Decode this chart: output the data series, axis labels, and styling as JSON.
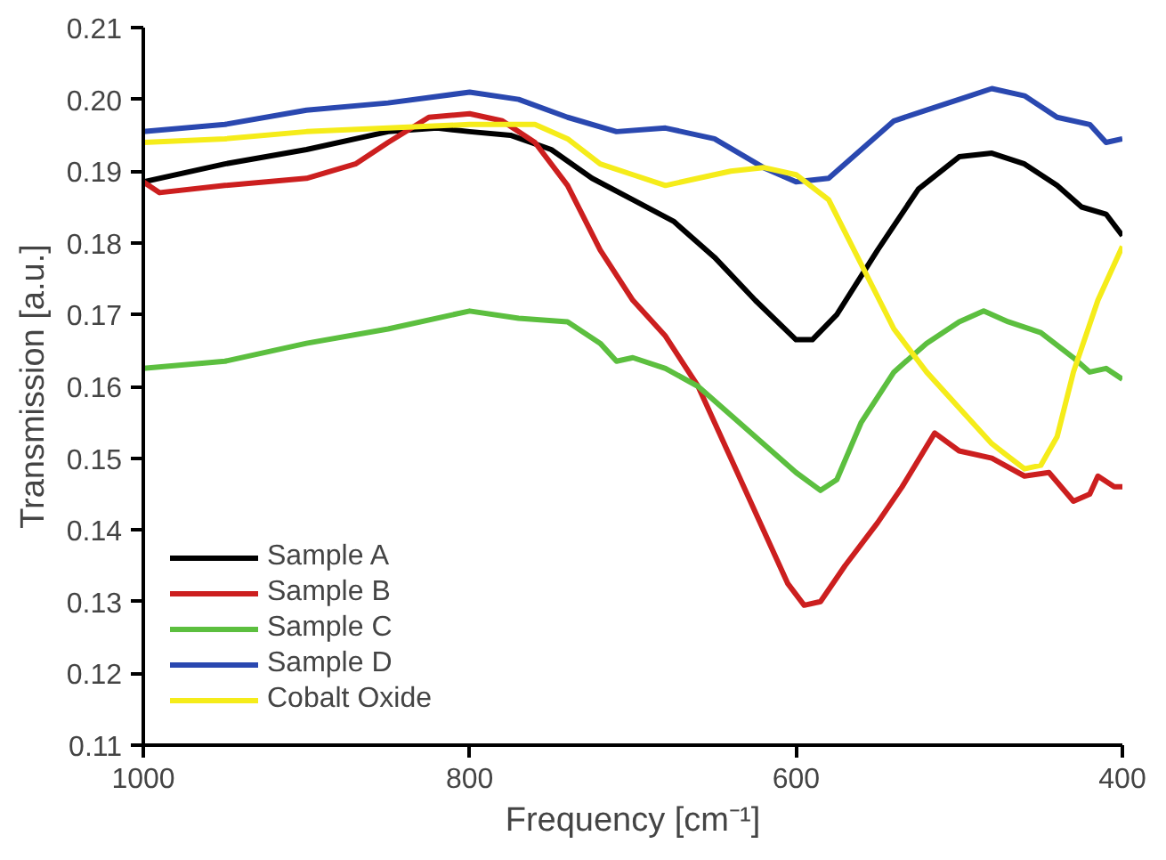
{
  "chart_data": {
    "type": "line",
    "xlabel": "Frequency [cm⁻¹]",
    "ylabel": "Transmission [a.u.]",
    "xlim": [
      1000,
      400
    ],
    "xticks": [
      1000,
      800,
      600,
      400
    ],
    "ylim": [
      0.11,
      0.21
    ],
    "yticks": [
      0.11,
      0.12,
      0.13,
      0.14,
      0.15,
      0.16,
      0.17,
      0.18,
      0.19,
      {
        "value": 0.2,
        "label": "0.20"
      },
      0.21
    ],
    "grid": false,
    "legend": "bottom left",
    "line_style": "solid",
    "marker": "none",
    "series": [
      {
        "name": "Sample A",
        "color": "#000000",
        "x": [
          1000,
          950,
          900,
          850,
          820,
          800,
          775,
          750,
          725,
          700,
          675,
          650,
          625,
          600,
          590,
          575,
          550,
          525,
          500,
          480,
          460,
          440,
          425,
          410,
          400
        ],
        "values": [
          0.1885,
          0.191,
          0.193,
          0.1955,
          0.196,
          0.1955,
          0.195,
          0.193,
          0.189,
          0.186,
          0.183,
          0.178,
          0.172,
          0.1665,
          0.1665,
          0.17,
          0.179,
          0.1875,
          0.192,
          0.1925,
          0.191,
          0.188,
          0.185,
          0.184,
          0.181
        ]
      },
      {
        "name": "Sample B",
        "color": "#cc1f1f",
        "x": [
          1000,
          990,
          950,
          900,
          870,
          850,
          825,
          800,
          780,
          760,
          740,
          720,
          700,
          680,
          660,
          640,
          620,
          605,
          595,
          585,
          570,
          550,
          535,
          515,
          500,
          480,
          460,
          445,
          430,
          420,
          415,
          405,
          400
        ],
        "values": [
          0.1885,
          0.187,
          0.188,
          0.189,
          0.191,
          0.194,
          0.1975,
          0.198,
          0.197,
          0.194,
          0.188,
          0.179,
          0.172,
          0.167,
          0.16,
          0.15,
          0.14,
          0.1325,
          0.1295,
          0.13,
          0.135,
          0.141,
          0.146,
          0.1535,
          0.151,
          0.15,
          0.1475,
          0.148,
          0.144,
          0.145,
          0.1475,
          0.146,
          0.146
        ]
      },
      {
        "name": "Sample C",
        "color": "#5cbf3f",
        "x": [
          1000,
          950,
          900,
          850,
          800,
          770,
          740,
          720,
          710,
          700,
          680,
          660,
          640,
          620,
          600,
          585,
          575,
          560,
          540,
          520,
          500,
          485,
          470,
          450,
          430,
          420,
          410,
          400
        ],
        "values": [
          0.1625,
          0.1635,
          0.166,
          0.168,
          0.1705,
          0.1695,
          0.169,
          0.166,
          0.1635,
          0.164,
          0.1625,
          0.16,
          0.156,
          0.152,
          0.148,
          0.1455,
          0.147,
          0.155,
          0.162,
          0.166,
          0.169,
          0.1705,
          0.169,
          0.1675,
          0.164,
          0.162,
          0.1625,
          0.161
        ]
      },
      {
        "name": "Sample D",
        "color": "#2a48b0",
        "x": [
          1000,
          950,
          900,
          850,
          800,
          770,
          740,
          710,
          680,
          650,
          620,
          600,
          580,
          560,
          540,
          520,
          500,
          480,
          460,
          440,
          420,
          410,
          400
        ],
        "values": [
          0.1955,
          0.1965,
          0.1985,
          0.1995,
          0.201,
          0.2,
          0.1975,
          0.1955,
          0.196,
          0.1945,
          0.1905,
          0.1885,
          0.189,
          0.193,
          0.197,
          0.1985,
          0.2,
          0.2015,
          0.2005,
          0.1975,
          0.1965,
          0.194,
          0.1945
        ]
      },
      {
        "name": "Cobalt Oxide",
        "color": "#f5ec1a",
        "x": [
          1000,
          950,
          900,
          850,
          800,
          760,
          740,
          720,
          700,
          680,
          660,
          640,
          620,
          600,
          580,
          560,
          540,
          520,
          500,
          480,
          460,
          450,
          440,
          430,
          415,
          400
        ],
        "values": [
          0.194,
          0.1945,
          0.1955,
          0.196,
          0.1965,
          0.1965,
          0.1945,
          0.191,
          0.1895,
          0.188,
          0.189,
          0.19,
          0.1905,
          0.1895,
          0.186,
          0.177,
          0.168,
          0.162,
          0.157,
          0.152,
          0.1485,
          0.149,
          0.153,
          0.162,
          0.172,
          0.1795
        ]
      }
    ]
  }
}
